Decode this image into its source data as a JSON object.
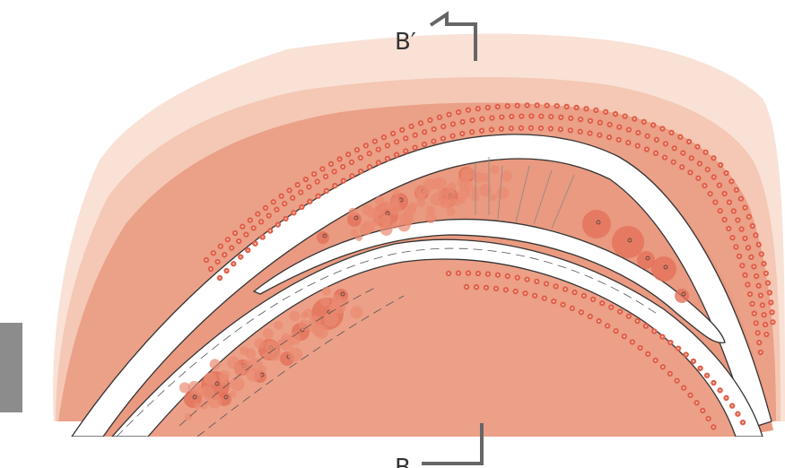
{
  "labels": {
    "top_section": "B′",
    "bottom_section": "B"
  }
}
